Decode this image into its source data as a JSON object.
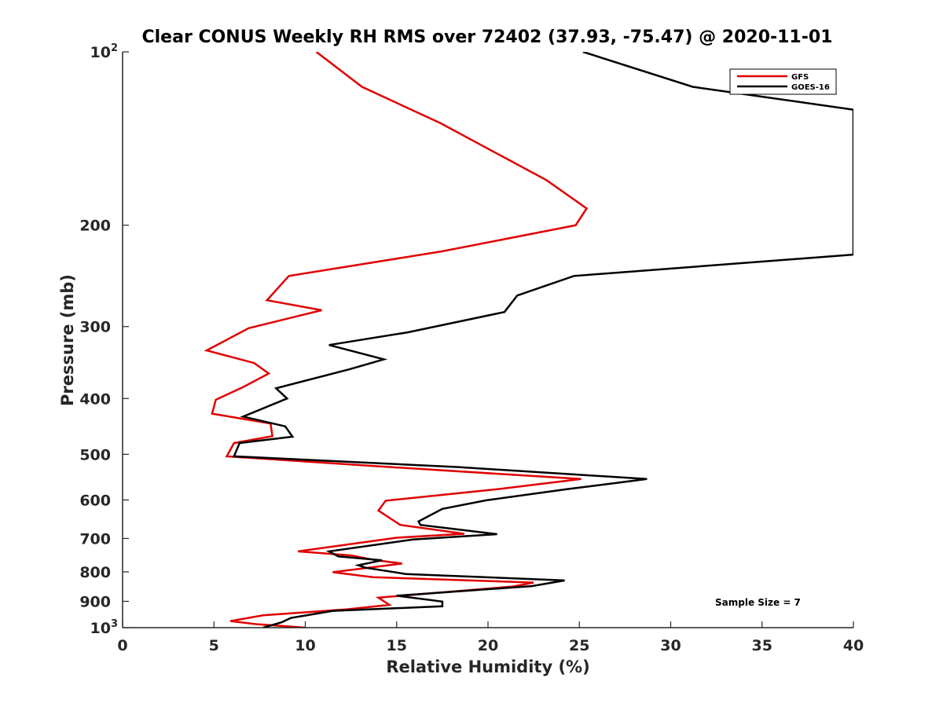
{
  "chart_data": {
    "type": "line",
    "title": "Clear CONUS Weekly RH RMS over 72402 (37.93, -75.47) @ 2020-11-01",
    "xlabel": "Relative Humidity (%)",
    "ylabel": "Pressure (mb)",
    "xlim": [
      0,
      40
    ],
    "ylim": [
      100,
      1000
    ],
    "yscale": "log",
    "y_reversed": true,
    "xticks": [
      "0",
      "5",
      "10",
      "15",
      "20",
      "25",
      "30",
      "35",
      "40"
    ],
    "yticks": [
      {
        "value": 100,
        "base": "10",
        "exp": "2"
      },
      {
        "value": 200,
        "label": "200"
      },
      {
        "value": 300,
        "label": "300"
      },
      {
        "value": 400,
        "label": "400"
      },
      {
        "value": 500,
        "label": "500"
      },
      {
        "value": 600,
        "label": "600"
      },
      {
        "value": 700,
        "label": "700"
      },
      {
        "value": 800,
        "label": "800"
      },
      {
        "value": 900,
        "label": "900"
      },
      {
        "value": 1000,
        "base": "10",
        "exp": "3"
      }
    ],
    "legend_position": "top-right",
    "annotation": "Sample Size = 7",
    "series": [
      {
        "name": "GFS",
        "color": "#e00000",
        "points": [
          [
            10.6,
            100
          ],
          [
            13.1,
            115
          ],
          [
            17.4,
            133
          ],
          [
            23.2,
            167
          ],
          [
            25.4,
            187
          ],
          [
            24.8,
            200
          ],
          [
            17.5,
            222
          ],
          [
            9.1,
            245
          ],
          [
            7.9,
            270
          ],
          [
            10.9,
            281
          ],
          [
            6.9,
            302
          ],
          [
            4.6,
            330
          ],
          [
            7.2,
            347
          ],
          [
            8.0,
            362
          ],
          [
            6.6,
            382
          ],
          [
            5.1,
            402
          ],
          [
            4.9,
            425
          ],
          [
            8.1,
            442
          ],
          [
            8.2,
            465
          ],
          [
            6.1,
            478
          ],
          [
            5.7,
            504
          ],
          [
            15.0,
            527
          ],
          [
            25.1,
            552
          ],
          [
            20.5,
            575
          ],
          [
            14.4,
            602
          ],
          [
            14.0,
            626
          ],
          [
            15.2,
            663
          ],
          [
            18.7,
            687
          ],
          [
            15.0,
            698
          ],
          [
            9.6,
            737
          ],
          [
            12.5,
            749
          ],
          [
            13.9,
            764
          ],
          [
            15.3,
            774
          ],
          [
            11.5,
            801
          ],
          [
            13.7,
            817
          ],
          [
            22.5,
            835
          ],
          [
            21.4,
            848
          ],
          [
            14.0,
            887
          ],
          [
            14.6,
            913
          ],
          [
            12.3,
            929
          ],
          [
            7.7,
            952
          ],
          [
            5.9,
            974
          ],
          [
            7.3,
            986
          ],
          [
            10.0,
            1000
          ]
        ]
      },
      {
        "name": "GOES-16",
        "color": "#000000",
        "points": [
          [
            25.2,
            100
          ],
          [
            31.2,
            115
          ],
          [
            40.0,
            126
          ],
          [
            40.0,
            225
          ],
          [
            24.7,
            245
          ],
          [
            21.6,
            265
          ],
          [
            20.9,
            283
          ],
          [
            15.6,
            307
          ],
          [
            11.3,
            323
          ],
          [
            14.3,
            342
          ],
          [
            12.4,
            356
          ],
          [
            8.4,
            384
          ],
          [
            9.0,
            400
          ],
          [
            6.6,
            430
          ],
          [
            8.9,
            447
          ],
          [
            9.3,
            466
          ],
          [
            6.4,
            478
          ],
          [
            6.1,
            504
          ],
          [
            18.3,
            526
          ],
          [
            28.7,
            552
          ],
          [
            24.3,
            575
          ],
          [
            19.9,
            601
          ],
          [
            17.5,
            622
          ],
          [
            16.2,
            654
          ],
          [
            16.3,
            663
          ],
          [
            20.5,
            688
          ],
          [
            15.9,
            703
          ],
          [
            11.3,
            737
          ],
          [
            11.8,
            752
          ],
          [
            14.2,
            764
          ],
          [
            12.9,
            779
          ],
          [
            13.3,
            787
          ],
          [
            15.5,
            807
          ],
          [
            24.2,
            828
          ],
          [
            22.4,
            847
          ],
          [
            15.0,
            880
          ],
          [
            17.5,
            901
          ],
          [
            17.5,
            918
          ],
          [
            11.5,
            935
          ],
          [
            9.2,
            962
          ],
          [
            8.7,
            979
          ],
          [
            7.7,
            1000
          ]
        ]
      }
    ]
  }
}
